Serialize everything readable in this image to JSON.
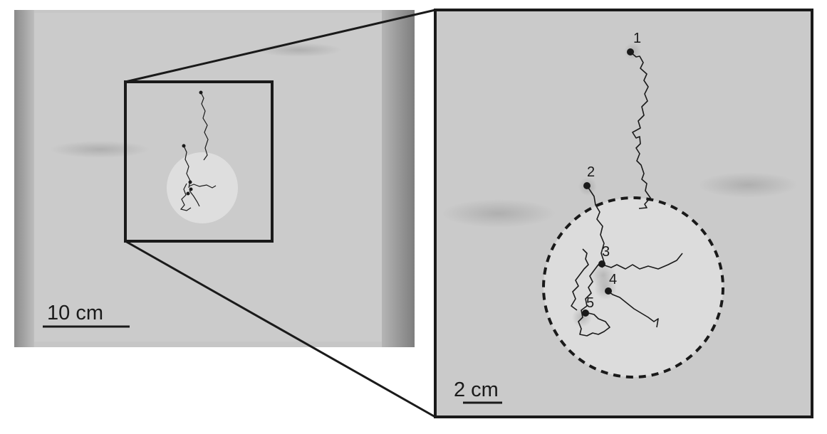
{
  "left_panel": {
    "scale_bar_label": "10 cm"
  },
  "right_panel": {
    "scale_bar_label": "2 cm",
    "point_labels": [
      "1",
      "2",
      "3",
      "4",
      "5"
    ]
  },
  "colors": {
    "background": "#ffffff",
    "arena": "#c9c9c9",
    "frame": "#1a1a1a",
    "track": "#1a1a1a",
    "zone": "#e2e2e2"
  }
}
